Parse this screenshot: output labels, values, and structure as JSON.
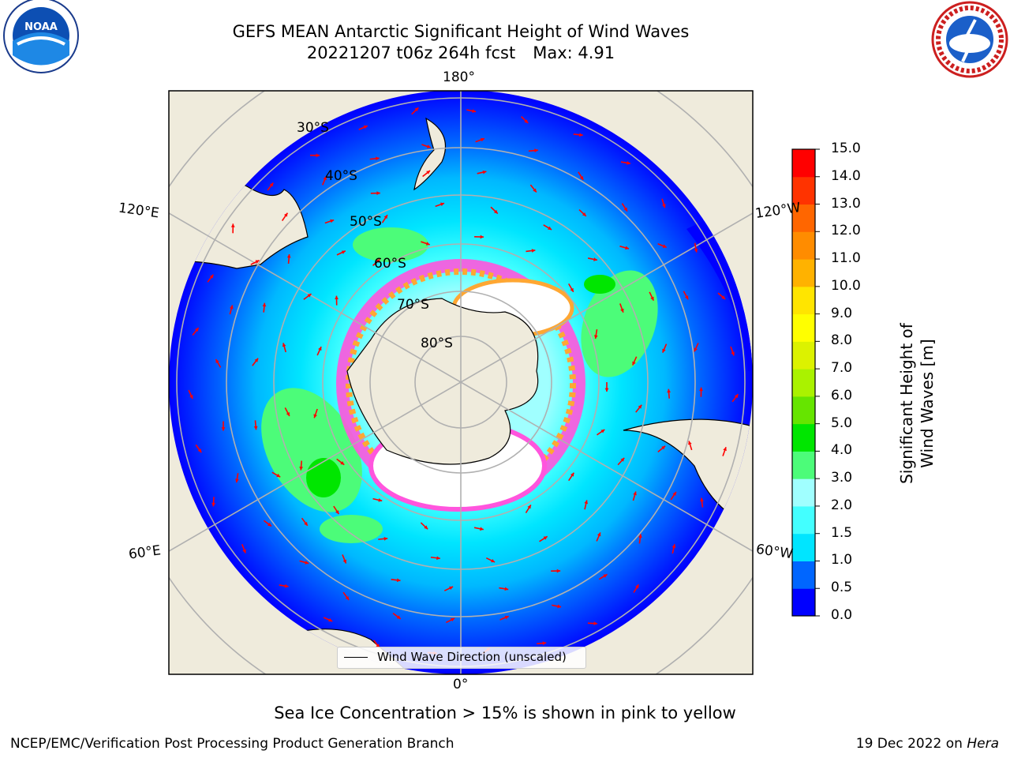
{
  "title": {
    "line1": "GEFS MEAN Antarctic Significant Height of Wind Waves",
    "line2_run": "20221207 t06z 264h fcst",
    "line2_max": "Max: 4.91"
  },
  "logos": {
    "left": "NOAA",
    "right": "NATIONAL WEATHER SERVICE"
  },
  "map": {
    "projection": "south polar stereographic",
    "longitude_labels": {
      "top": "180°",
      "bottom": "0°",
      "upper_left": "120°E",
      "lower_left": "60°E",
      "upper_right": "120°W",
      "lower_right": "60°W"
    },
    "latitude_labels": [
      "30°S",
      "40°S",
      "50°S",
      "60°S",
      "70°S",
      "80°S"
    ],
    "legend": "Wind Wave Direction (unscaled)",
    "arrow_color": "#ff0000",
    "land_color": "#efebdc"
  },
  "colorbar": {
    "label": "Significant Height of Wind Waves [m]",
    "ticks": [
      "0.0",
      "0.5",
      "1.0",
      "1.5",
      "2.0",
      "3.0",
      "4.0",
      "5.0",
      "6.0",
      "7.0",
      "8.0",
      "9.0",
      "10.0",
      "11.0",
      "12.0",
      "13.0",
      "14.0",
      "15.0"
    ],
    "colors": [
      "#0000ff",
      "#0066ff",
      "#00e5ff",
      "#43ffff",
      "#a0ffff",
      "#4cfc79",
      "#00e600",
      "#66e500",
      "#aaf200",
      "#dcf200",
      "#ffff00",
      "#ffe500",
      "#ffb200",
      "#ff8c00",
      "#ff6600",
      "#ff3300",
      "#ff0000"
    ]
  },
  "footer": {
    "note": "Sea Ice Concentration > 15% is shown in pink to yellow",
    "credit": "NCEP/EMC/Verification Post Processing Product Generation Branch",
    "date": "19 Dec 2022 on",
    "machine": "Hera"
  }
}
